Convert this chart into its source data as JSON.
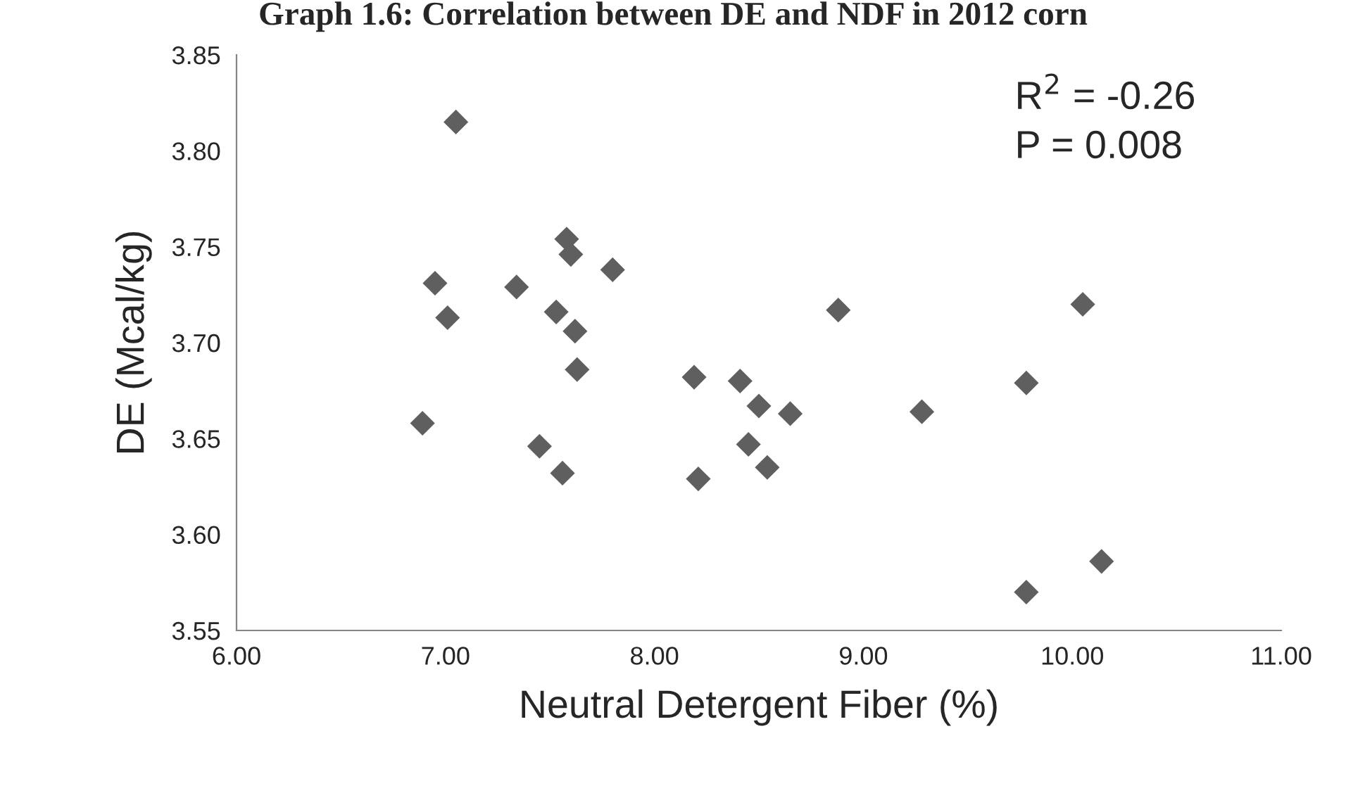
{
  "chart_data": {
    "type": "scatter",
    "title": "Graph 1.6: Correlation between DE and NDF in 2012 corn",
    "xlabel": "Neutral Detergent Fiber (%)",
    "ylabel": "DE (Mcal/kg)",
    "annotations": [
      "R$^{2}$ = -0.26",
      "P = 0.008"
    ],
    "xlim": [
      6.0,
      11.0
    ],
    "xticks": [
      {
        "value": 6,
        "label": "6.00"
      },
      {
        "value": 7,
        "label": "7.00"
      },
      {
        "value": 8,
        "label": "8.00"
      },
      {
        "value": 9,
        "label": "9.00"
      },
      {
        "value": 10,
        "label": "10.00"
      },
      {
        "value": 11,
        "label": "11.00"
      }
    ],
    "ylim": [
      3.55,
      3.85
    ],
    "yticks": [
      {
        "value": 3.55,
        "label": "3.55"
      },
      {
        "value": 3.6,
        "label": "3.60"
      },
      {
        "value": 3.65,
        "label": "3.65"
      },
      {
        "value": 3.7,
        "label": "3.70"
      },
      {
        "value": 3.75,
        "label": "3.75"
      },
      {
        "value": 3.8,
        "label": "3.80"
      },
      {
        "value": 3.85,
        "label": "3.85"
      }
    ],
    "marker": "diamond",
    "grid": false,
    "legend": false,
    "series": [
      {
        "color": "#5f5f5f",
        "x": [
          7.05,
          6.95,
          7.01,
          6.89,
          7.34,
          7.53,
          7.58,
          7.6,
          7.62,
          7.63,
          7.8,
          7.45,
          7.56,
          8.19,
          8.21,
          8.41,
          8.45,
          8.5,
          8.54,
          8.65,
          8.88,
          9.28,
          9.78,
          9.78,
          10.05,
          10.14
        ],
        "values": [
          3.815,
          3.731,
          3.713,
          3.658,
          3.729,
          3.716,
          3.754,
          3.746,
          3.706,
          3.686,
          3.738,
          3.646,
          3.632,
          3.682,
          3.629,
          3.68,
          3.647,
          3.667,
          3.635,
          3.663,
          3.717,
          3.664,
          3.679,
          3.57,
          3.72,
          3.586
        ]
      }
    ]
  }
}
